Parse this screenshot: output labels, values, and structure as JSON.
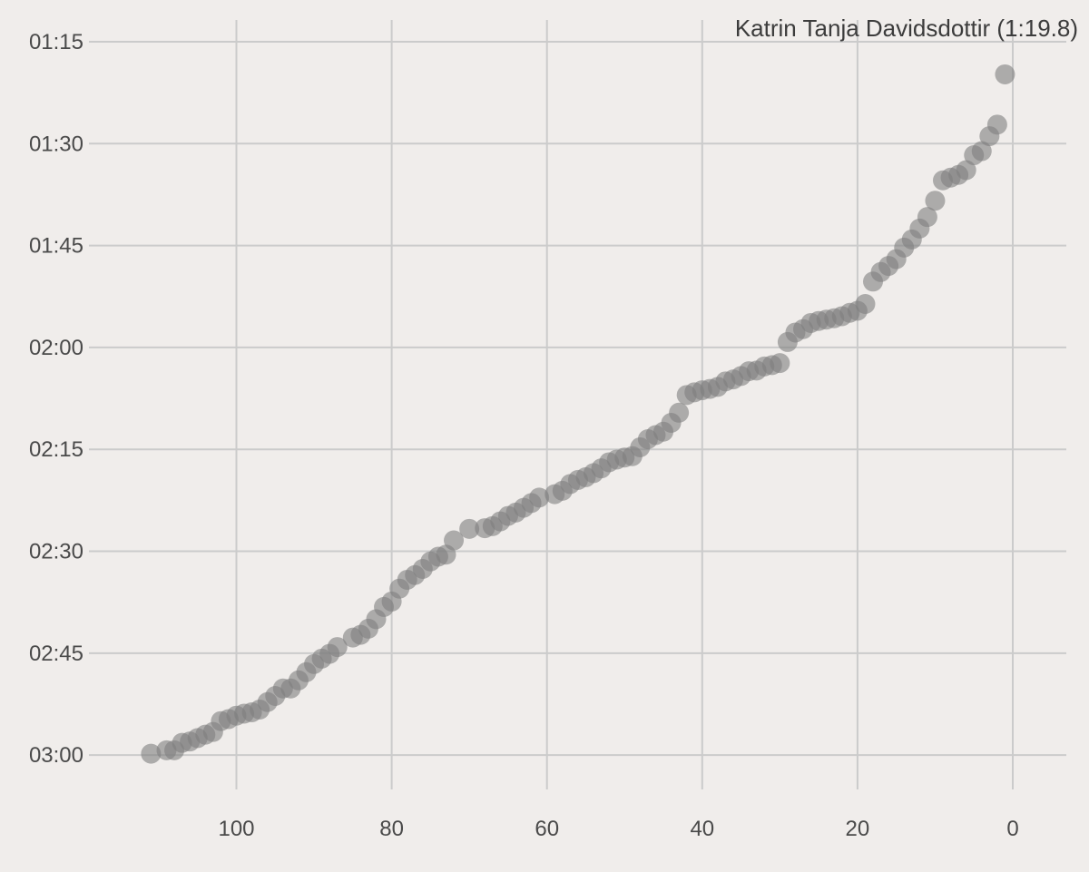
{
  "chart_data": {
    "type": "scatter",
    "title": "",
    "xlabel": "",
    "ylabel": "",
    "grid": true,
    "x_axis": {
      "reversed": true,
      "xlim": [
        0,
        112
      ],
      "ticks": [
        100,
        80,
        60,
        40,
        20,
        0
      ]
    },
    "y_axis": {
      "unit": "seconds (time, mm:ss)",
      "inverted": true,
      "ylim_seconds": [
        75,
        180
      ],
      "ticks": [
        {
          "value": 75,
          "label": "01:15"
        },
        {
          "value": 90,
          "label": "01:30"
        },
        {
          "value": 105,
          "label": "01:45"
        },
        {
          "value": 120,
          "label": "02:00"
        },
        {
          "value": 135,
          "label": "02:15"
        },
        {
          "value": 150,
          "label": "02:30"
        },
        {
          "value": 165,
          "label": "02:45"
        },
        {
          "value": 180,
          "label": "03:00"
        }
      ]
    },
    "annotation": {
      "text": "Katrin Tanja Davidsdottir (1:19.8)",
      "x": 1,
      "y": 79.8,
      "position": "top-right"
    },
    "color": "#7f7f7f",
    "points": [
      {
        "x": 111,
        "y": 179.8
      },
      {
        "x": 109,
        "y": 179.3
      },
      {
        "x": 108,
        "y": 179.3
      },
      {
        "x": 107,
        "y": 178.2
      },
      {
        "x": 106,
        "y": 178.0
      },
      {
        "x": 105,
        "y": 177.5
      },
      {
        "x": 104,
        "y": 177.0
      },
      {
        "x": 103,
        "y": 176.6
      },
      {
        "x": 102,
        "y": 175.0
      },
      {
        "x": 101,
        "y": 174.7
      },
      {
        "x": 100,
        "y": 174.2
      },
      {
        "x": 99,
        "y": 173.9
      },
      {
        "x": 98,
        "y": 173.7
      },
      {
        "x": 97,
        "y": 173.3
      },
      {
        "x": 96,
        "y": 172.2
      },
      {
        "x": 95,
        "y": 171.3
      },
      {
        "x": 94,
        "y": 170.2
      },
      {
        "x": 93,
        "y": 170.2
      },
      {
        "x": 92,
        "y": 169.0
      },
      {
        "x": 91,
        "y": 167.8
      },
      {
        "x": 90,
        "y": 166.6
      },
      {
        "x": 89,
        "y": 165.8
      },
      {
        "x": 88,
        "y": 165.1
      },
      {
        "x": 87,
        "y": 164.1
      },
      {
        "x": 85,
        "y": 162.7
      },
      {
        "x": 84,
        "y": 162.3
      },
      {
        "x": 83,
        "y": 161.4
      },
      {
        "x": 82,
        "y": 160.0
      },
      {
        "x": 81,
        "y": 158.2
      },
      {
        "x": 80,
        "y": 157.4
      },
      {
        "x": 79,
        "y": 155.5
      },
      {
        "x": 78,
        "y": 154.2
      },
      {
        "x": 77,
        "y": 153.5
      },
      {
        "x": 76,
        "y": 152.6
      },
      {
        "x": 75,
        "y": 151.5
      },
      {
        "x": 74,
        "y": 150.8
      },
      {
        "x": 73,
        "y": 150.5
      },
      {
        "x": 72,
        "y": 148.4
      },
      {
        "x": 70,
        "y": 146.7
      },
      {
        "x": 68,
        "y": 146.6
      },
      {
        "x": 67,
        "y": 146.3
      },
      {
        "x": 66,
        "y": 145.6
      },
      {
        "x": 65,
        "y": 144.8
      },
      {
        "x": 64,
        "y": 144.3
      },
      {
        "x": 63,
        "y": 143.6
      },
      {
        "x": 62,
        "y": 142.9
      },
      {
        "x": 61,
        "y": 142.1
      },
      {
        "x": 59,
        "y": 141.6
      },
      {
        "x": 58,
        "y": 141.1
      },
      {
        "x": 57,
        "y": 140.1
      },
      {
        "x": 56,
        "y": 139.5
      },
      {
        "x": 55,
        "y": 139.1
      },
      {
        "x": 54,
        "y": 138.5
      },
      {
        "x": 53,
        "y": 137.8
      },
      {
        "x": 52,
        "y": 136.9
      },
      {
        "x": 51,
        "y": 136.5
      },
      {
        "x": 50,
        "y": 136.2
      },
      {
        "x": 49,
        "y": 136.0
      },
      {
        "x": 48,
        "y": 134.7
      },
      {
        "x": 47,
        "y": 133.5
      },
      {
        "x": 46,
        "y": 132.9
      },
      {
        "x": 45,
        "y": 132.4
      },
      {
        "x": 44,
        "y": 131.1
      },
      {
        "x": 43,
        "y": 129.6
      },
      {
        "x": 42,
        "y": 127.0
      },
      {
        "x": 41,
        "y": 126.6
      },
      {
        "x": 40,
        "y": 126.3
      },
      {
        "x": 39,
        "y": 126.1
      },
      {
        "x": 38,
        "y": 125.8
      },
      {
        "x": 37,
        "y": 125.0
      },
      {
        "x": 36,
        "y": 124.7
      },
      {
        "x": 35,
        "y": 124.2
      },
      {
        "x": 34,
        "y": 123.5
      },
      {
        "x": 33,
        "y": 123.4
      },
      {
        "x": 32,
        "y": 122.8
      },
      {
        "x": 31,
        "y": 122.6
      },
      {
        "x": 30,
        "y": 122.3
      },
      {
        "x": 29,
        "y": 119.2
      },
      {
        "x": 28,
        "y": 117.8
      },
      {
        "x": 27,
        "y": 117.3
      },
      {
        "x": 26,
        "y": 116.4
      },
      {
        "x": 25,
        "y": 116.1
      },
      {
        "x": 24,
        "y": 115.9
      },
      {
        "x": 23,
        "y": 115.7
      },
      {
        "x": 22,
        "y": 115.4
      },
      {
        "x": 21,
        "y": 114.9
      },
      {
        "x": 20,
        "y": 114.6
      },
      {
        "x": 19,
        "y": 113.6
      },
      {
        "x": 18,
        "y": 110.3
      },
      {
        "x": 17,
        "y": 108.9
      },
      {
        "x": 16,
        "y": 108.0
      },
      {
        "x": 15,
        "y": 107.0
      },
      {
        "x": 14,
        "y": 105.3
      },
      {
        "x": 13,
        "y": 104.1
      },
      {
        "x": 12,
        "y": 102.5
      },
      {
        "x": 11,
        "y": 100.8
      },
      {
        "x": 10,
        "y": 98.4
      },
      {
        "x": 9,
        "y": 95.4
      },
      {
        "x": 8,
        "y": 95.0
      },
      {
        "x": 7,
        "y": 94.6
      },
      {
        "x": 6,
        "y": 93.9
      },
      {
        "x": 5,
        "y": 91.7
      },
      {
        "x": 4,
        "y": 91.1
      },
      {
        "x": 3,
        "y": 88.9
      },
      {
        "x": 2,
        "y": 87.2
      },
      {
        "x": 1,
        "y": 79.8
      }
    ]
  }
}
